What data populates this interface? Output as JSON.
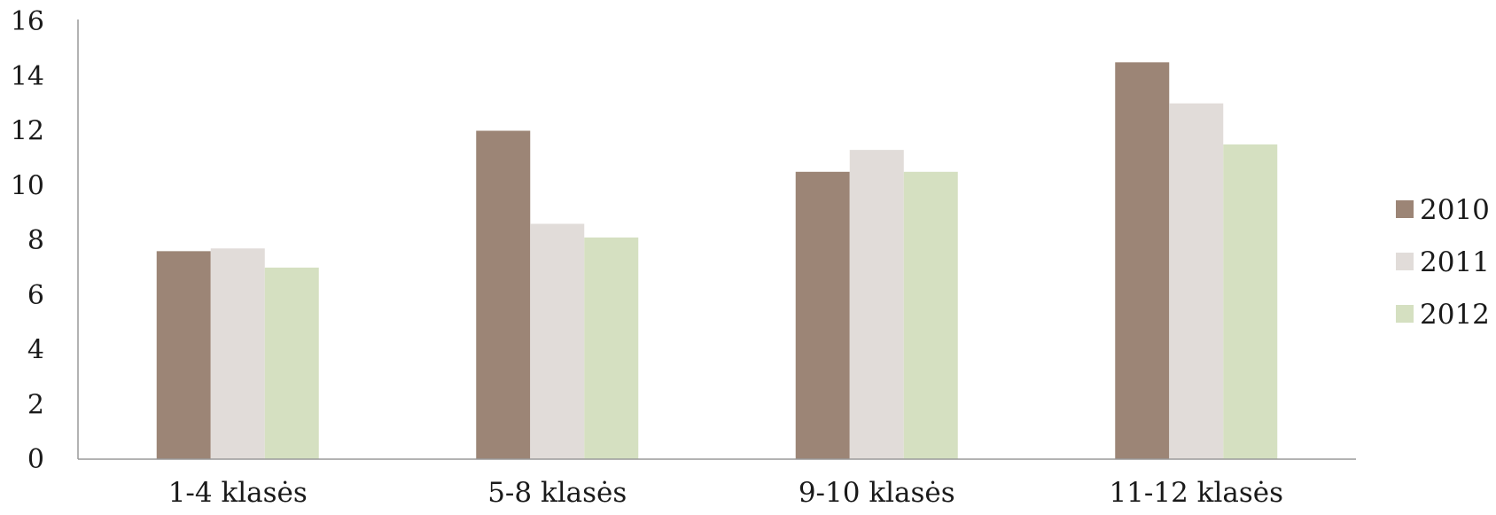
{
  "chart_data": {
    "type": "bar",
    "categories": [
      "1-4 klasės",
      "5-8 klasės",
      "9-10 klasės",
      "11-12 klasės"
    ],
    "series": [
      {
        "name": "2010",
        "color": "#9c8576",
        "values": [
          7.6,
          12.0,
          10.5,
          14.5
        ]
      },
      {
        "name": "2011",
        "color": "#e1dcd9",
        "values": [
          7.7,
          8.6,
          11.3,
          13.0
        ]
      },
      {
        "name": "2012",
        "color": "#d5e0c1",
        "values": [
          7.0,
          8.1,
          10.5,
          11.5
        ]
      }
    ],
    "y_ticks": [
      "0",
      "2",
      "4",
      "6",
      "8",
      "10",
      "12",
      "14",
      "16"
    ],
    "ylim": [
      0,
      16
    ],
    "grid": false,
    "legend_position": "right"
  }
}
